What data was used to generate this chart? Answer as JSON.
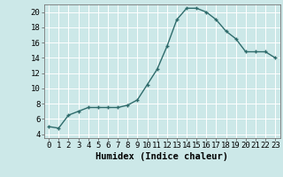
{
  "x": [
    0,
    1,
    2,
    3,
    4,
    5,
    6,
    7,
    8,
    9,
    10,
    11,
    12,
    13,
    14,
    15,
    16,
    17,
    18,
    19,
    20,
    21,
    22,
    23
  ],
  "y": [
    5,
    4.8,
    6.5,
    7,
    7.5,
    7.5,
    7.5,
    7.5,
    7.8,
    8.5,
    10.5,
    12.5,
    15.5,
    19,
    20.5,
    20.5,
    20,
    19,
    17.5,
    16.5,
    14.8,
    14.8,
    14.8,
    14
  ],
  "line_color": "#2e6b6b",
  "marker": "+",
  "bg_color": "#cce8e8",
  "grid_color": "#ffffff",
  "xlabel": "Humidex (Indice chaleur)",
  "xlim": [
    -0.5,
    23.5
  ],
  "ylim": [
    3.5,
    21
  ],
  "yticks": [
    4,
    6,
    8,
    10,
    12,
    14,
    16,
    18,
    20
  ],
  "xticks": [
    0,
    1,
    2,
    3,
    4,
    5,
    6,
    7,
    8,
    9,
    10,
    11,
    12,
    13,
    14,
    15,
    16,
    17,
    18,
    19,
    20,
    21,
    22,
    23
  ],
  "font_size": 6.5,
  "xlabel_fontsize": 7.5,
  "linewidth": 1.0,
  "markersize": 3.5
}
